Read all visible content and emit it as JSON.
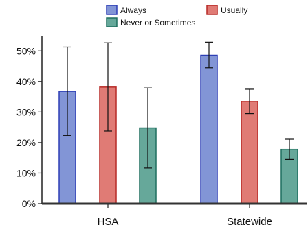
{
  "chart_data": {
    "type": "bar",
    "categories": [
      "HSA",
      "Statewide"
    ],
    "series": [
      {
        "name": "Always",
        "fill": "#8295D6",
        "stroke": "#2E3FB5",
        "values": [
          36.8,
          48.6
        ],
        "error_low": [
          22.3,
          44.5
        ],
        "error_high": [
          51.3,
          52.9
        ]
      },
      {
        "name": "Usually",
        "fill": "#E07B75",
        "stroke": "#B72A26",
        "values": [
          38.2,
          33.5
        ],
        "error_low": [
          23.8,
          29.5
        ],
        "error_high": [
          52.7,
          37.5
        ]
      },
      {
        "name": "Never or Sometimes",
        "fill": "#66A89A",
        "stroke": "#1F6F5F",
        "values": [
          24.8,
          17.8
        ],
        "error_low": [
          11.7,
          14.5
        ],
        "error_high": [
          37.9,
          21.1
        ]
      }
    ],
    "ylim": [
      0,
      55
    ],
    "y_ticks": [
      0,
      10,
      20,
      30,
      40,
      50
    ],
    "y_tick_labels": [
      "0%",
      "10%",
      "20%",
      "30%",
      "40%",
      "50%"
    ],
    "legend_position": "top",
    "grid": false
  }
}
